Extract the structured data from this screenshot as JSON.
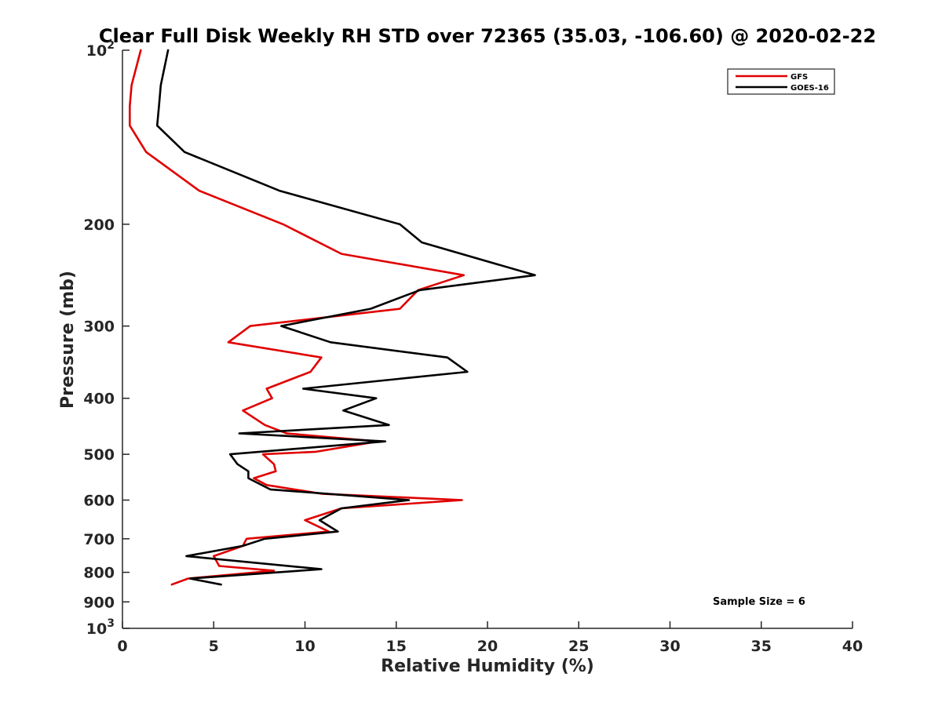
{
  "chart_data": {
    "type": "line",
    "title": "Clear Full Disk Weekly RH STD over 72365 (35.03, -106.60) @ 2020-02-22",
    "xlabel": "Relative Humidity (%)",
    "ylabel": "Pressure (mb)",
    "xlim": [
      0,
      40
    ],
    "ylim": [
      100,
      1000
    ],
    "yscale": "log",
    "y_reversed": true,
    "x_ticks": [
      "0",
      "5",
      "10",
      "15",
      "20",
      "25",
      "30",
      "35",
      "40"
    ],
    "y_ticks": [
      {
        "value": 100,
        "base": "10",
        "exp": "2"
      },
      {
        "value": 200,
        "label": "200"
      },
      {
        "value": 300,
        "label": "300"
      },
      {
        "value": 400,
        "label": "400"
      },
      {
        "value": 500,
        "label": "500"
      },
      {
        "value": 600,
        "label": "600"
      },
      {
        "value": 700,
        "label": "700"
      },
      {
        "value": 800,
        "label": "800"
      },
      {
        "value": 900,
        "label": "900"
      },
      {
        "value": 1000,
        "base": "10",
        "exp": "3"
      }
    ],
    "legend_position": "top-right",
    "annotation": "Sample Size = 6",
    "series": [
      {
        "name": "GFS",
        "color": "#e00000",
        "points": [
          [
            1.0,
            100
          ],
          [
            0.5,
            115
          ],
          [
            0.4,
            125
          ],
          [
            0.4,
            135
          ],
          [
            1.3,
            150
          ],
          [
            4.2,
            175
          ],
          [
            8.8,
            200
          ],
          [
            12.0,
            225
          ],
          [
            18.7,
            245
          ],
          [
            16.2,
            260
          ],
          [
            15.2,
            280
          ],
          [
            7.0,
            300
          ],
          [
            5.8,
            320
          ],
          [
            10.9,
            340
          ],
          [
            10.3,
            360
          ],
          [
            7.9,
            385
          ],
          [
            8.2,
            400
          ],
          [
            6.6,
            420
          ],
          [
            7.8,
            445
          ],
          [
            9.0,
            460
          ],
          [
            14.0,
            475
          ],
          [
            10.6,
            495
          ],
          [
            7.7,
            500
          ],
          [
            8.3,
            520
          ],
          [
            8.4,
            535
          ],
          [
            7.2,
            550
          ],
          [
            7.9,
            565
          ],
          [
            10.9,
            585
          ],
          [
            18.6,
            600
          ],
          [
            12.0,
            620
          ],
          [
            10.0,
            650
          ],
          [
            11.3,
            680
          ],
          [
            6.8,
            700
          ],
          [
            6.6,
            720
          ],
          [
            5.0,
            750
          ],
          [
            5.3,
            780
          ],
          [
            8.3,
            795
          ],
          [
            3.6,
            820
          ],
          [
            2.7,
            840
          ]
        ]
      },
      {
        "name": "GOES-16",
        "color": "#000000",
        "points": [
          [
            2.5,
            100
          ],
          [
            2.1,
            115
          ],
          [
            2.0,
            125
          ],
          [
            1.9,
            135
          ],
          [
            3.4,
            150
          ],
          [
            8.6,
            175
          ],
          [
            15.2,
            200
          ],
          [
            16.4,
            215
          ],
          [
            22.6,
            245
          ],
          [
            16.3,
            260
          ],
          [
            13.6,
            280
          ],
          [
            8.7,
            300
          ],
          [
            11.4,
            320
          ],
          [
            17.8,
            340
          ],
          [
            18.9,
            360
          ],
          [
            9.9,
            385
          ],
          [
            13.9,
            400
          ],
          [
            12.1,
            420
          ],
          [
            14.6,
            445
          ],
          [
            6.4,
            460
          ],
          [
            14.4,
            475
          ],
          [
            5.9,
            500
          ],
          [
            6.3,
            520
          ],
          [
            6.9,
            535
          ],
          [
            6.9,
            550
          ],
          [
            8.1,
            575
          ],
          [
            15.7,
            600
          ],
          [
            12.0,
            620
          ],
          [
            10.8,
            650
          ],
          [
            11.8,
            680
          ],
          [
            7.8,
            700
          ],
          [
            6.6,
            720
          ],
          [
            3.5,
            750
          ],
          [
            10.9,
            790
          ],
          [
            3.7,
            820
          ],
          [
            5.4,
            840
          ]
        ]
      }
    ]
  }
}
